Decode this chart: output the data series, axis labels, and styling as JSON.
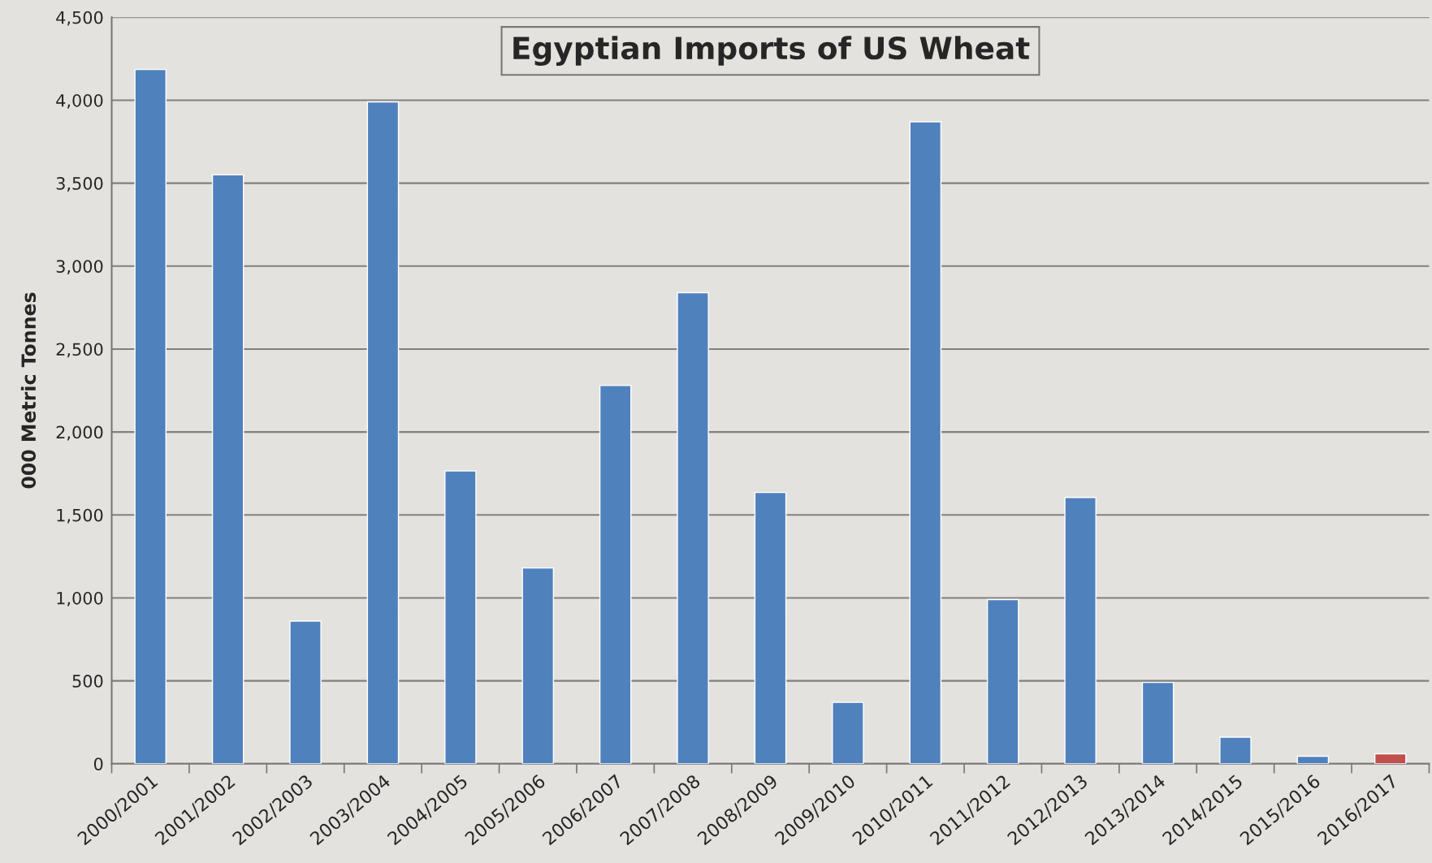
{
  "chart_data": {
    "type": "bar",
    "title": "Egyptian Imports of US Wheat",
    "ylabel": "000 Metric Tonnes",
    "categories": [
      "2000/2001",
      "2001/2002",
      "2002/2003",
      "2003/2004",
      "2004/2005",
      "2005/2006",
      "2006/2007",
      "2007/2008",
      "2008/2009",
      "2009/2010",
      "2010/2011",
      "2011/2012",
      "2012/2013",
      "2013/2014",
      "2014/2015",
      "2015/2016",
      "2016/2017"
    ],
    "values": [
      4185,
      3550,
      860,
      3990,
      1765,
      1180,
      2280,
      2840,
      1635,
      370,
      3870,
      990,
      1605,
      490,
      160,
      45,
      60
    ],
    "colors": [
      "#4f81bd",
      "#4f81bd",
      "#4f81bd",
      "#4f81bd",
      "#4f81bd",
      "#4f81bd",
      "#4f81bd",
      "#4f81bd",
      "#4f81bd",
      "#4f81bd",
      "#4f81bd",
      "#4f81bd",
      "#4f81bd",
      "#4f81bd",
      "#4f81bd",
      "#4f81bd",
      "#c0504d"
    ],
    "ylim": [
      0,
      4500
    ],
    "yticks": [
      0,
      {
        "value": 500,
        "label": "500"
      },
      {
        "value": 1000,
        "label": "1,000"
      },
      {
        "value": 1500,
        "label": "1,500"
      },
      {
        "value": 2000,
        "label": "2,000"
      },
      {
        "value": 2500,
        "label": "2,500"
      },
      {
        "value": 3000,
        "label": "3,000"
      },
      {
        "value": 3500,
        "label": "3,500"
      },
      {
        "value": 4000,
        "label": "4,000"
      },
      {
        "value": 4500,
        "label": "4,500"
      }
    ],
    "grid": "y"
  }
}
